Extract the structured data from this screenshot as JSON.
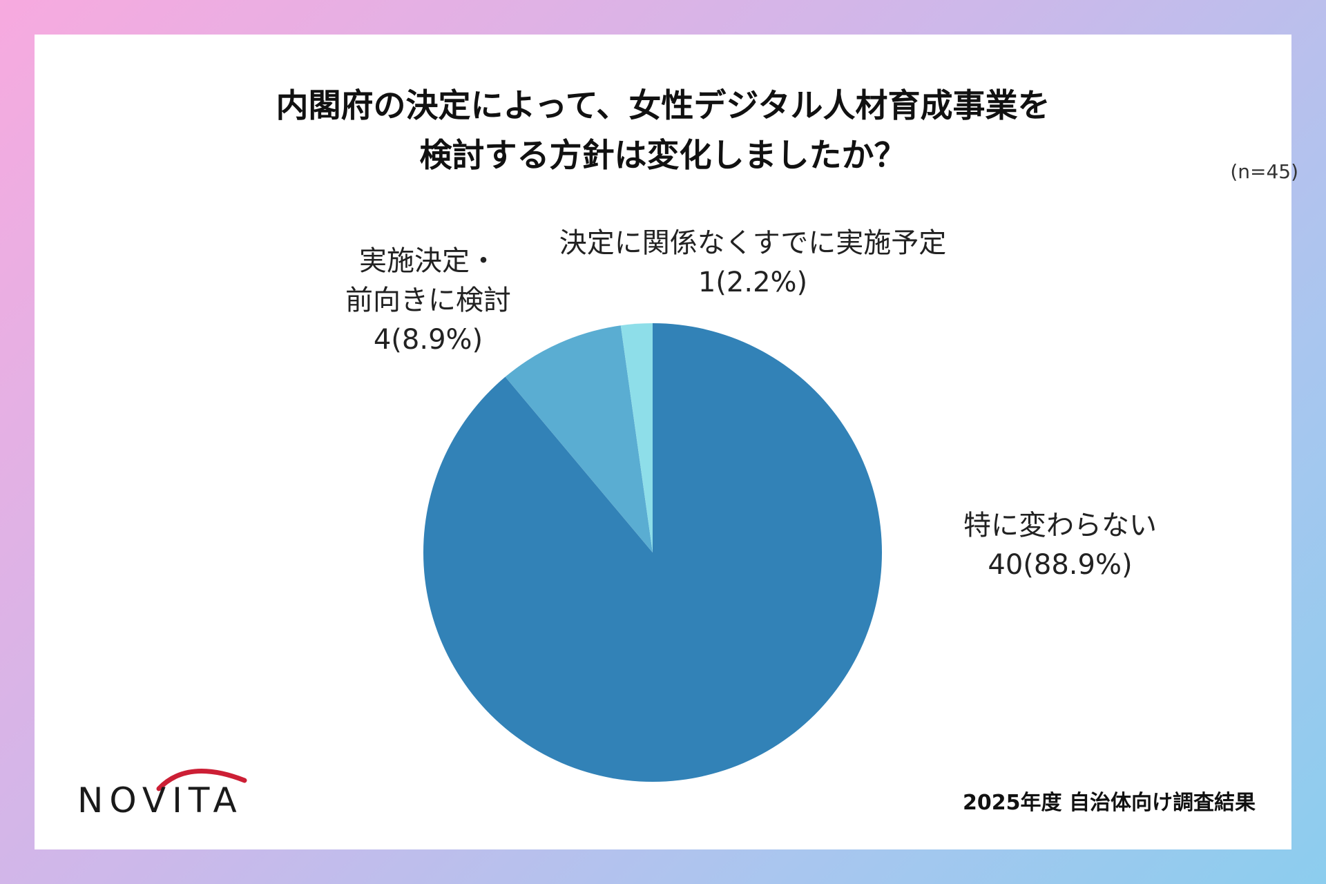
{
  "chart_data": {
    "type": "pie",
    "title_lines": [
      "内閣府の決定によって、女性デジタル人材育成事業を",
      "検討する方針は変化しましたか？"
    ],
    "sample_size": "(n=45)",
    "start": "12 o'clock",
    "direction": "clockwise",
    "slices": [
      {
        "name": "特に変わらない",
        "value_label": "40(88.9%)",
        "count": 40,
        "percent": 88.9,
        "color": "#3282b7"
      },
      {
        "name": "実施決定・前向きに検討",
        "name_lines": [
          "実施決定・",
          "前向きに検討"
        ],
        "value_label": "4(8.9%)",
        "count": 4,
        "percent": 8.9,
        "color": "#5aadd2"
      },
      {
        "name": "決定に関係なくすでに実施予定",
        "value_label": "1(2.2%)",
        "count": 1,
        "percent": 2.2,
        "color": "#8edee9"
      }
    ]
  },
  "brand": {
    "logo_text": "NOVITA",
    "logo_arc_color": "#cc1f35"
  },
  "footer": {
    "note": "2025年度 自治体向け調査結果"
  }
}
